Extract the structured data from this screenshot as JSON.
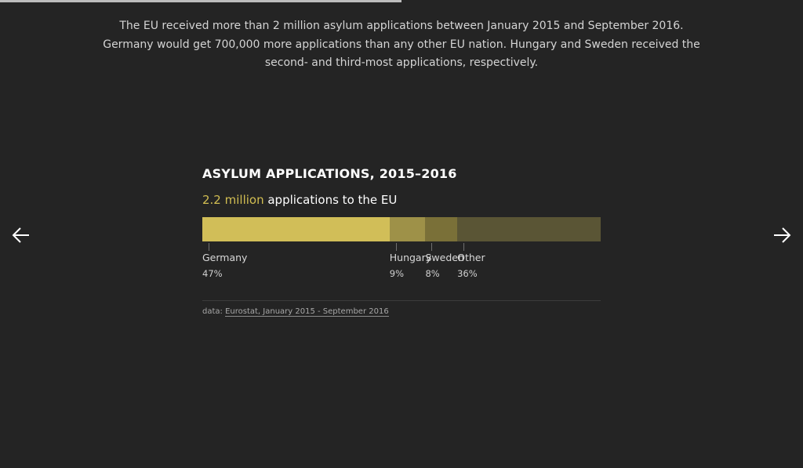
{
  "progress": {
    "fraction": 0.5
  },
  "intro_text": "The EU received more than 2 million asylum applications between January 2015 and September 2016. Germany would get 700,000 more applications than any other EU nation. Hungary and Sweden received the second- and third-most applications, respectively.",
  "nav": {
    "prev_icon": "arrow-left-icon",
    "next_icon": "arrow-right-icon"
  },
  "chart_data": {
    "type": "bar",
    "orientation": "stacked-horizontal",
    "title": "ASYLUM APPLICATIONS, 2015–2016",
    "subtitle_highlight": "2.2 million",
    "subtitle_rest": " applications to the EU",
    "categories": [
      "Germany",
      "Hungary",
      "Sweden",
      "Other"
    ],
    "values": [
      47,
      9,
      8,
      36
    ],
    "value_labels": [
      "47%",
      "9%",
      "8%",
      "36%"
    ],
    "colors": [
      "#d1be58",
      "#9e9148",
      "#7a7038",
      "#5a5535"
    ],
    "source_prefix": "data: ",
    "source_link": "Eurostat, January 2015 - September 2016"
  },
  "colors": {
    "background": "#242424",
    "accent": "#d2be52"
  }
}
